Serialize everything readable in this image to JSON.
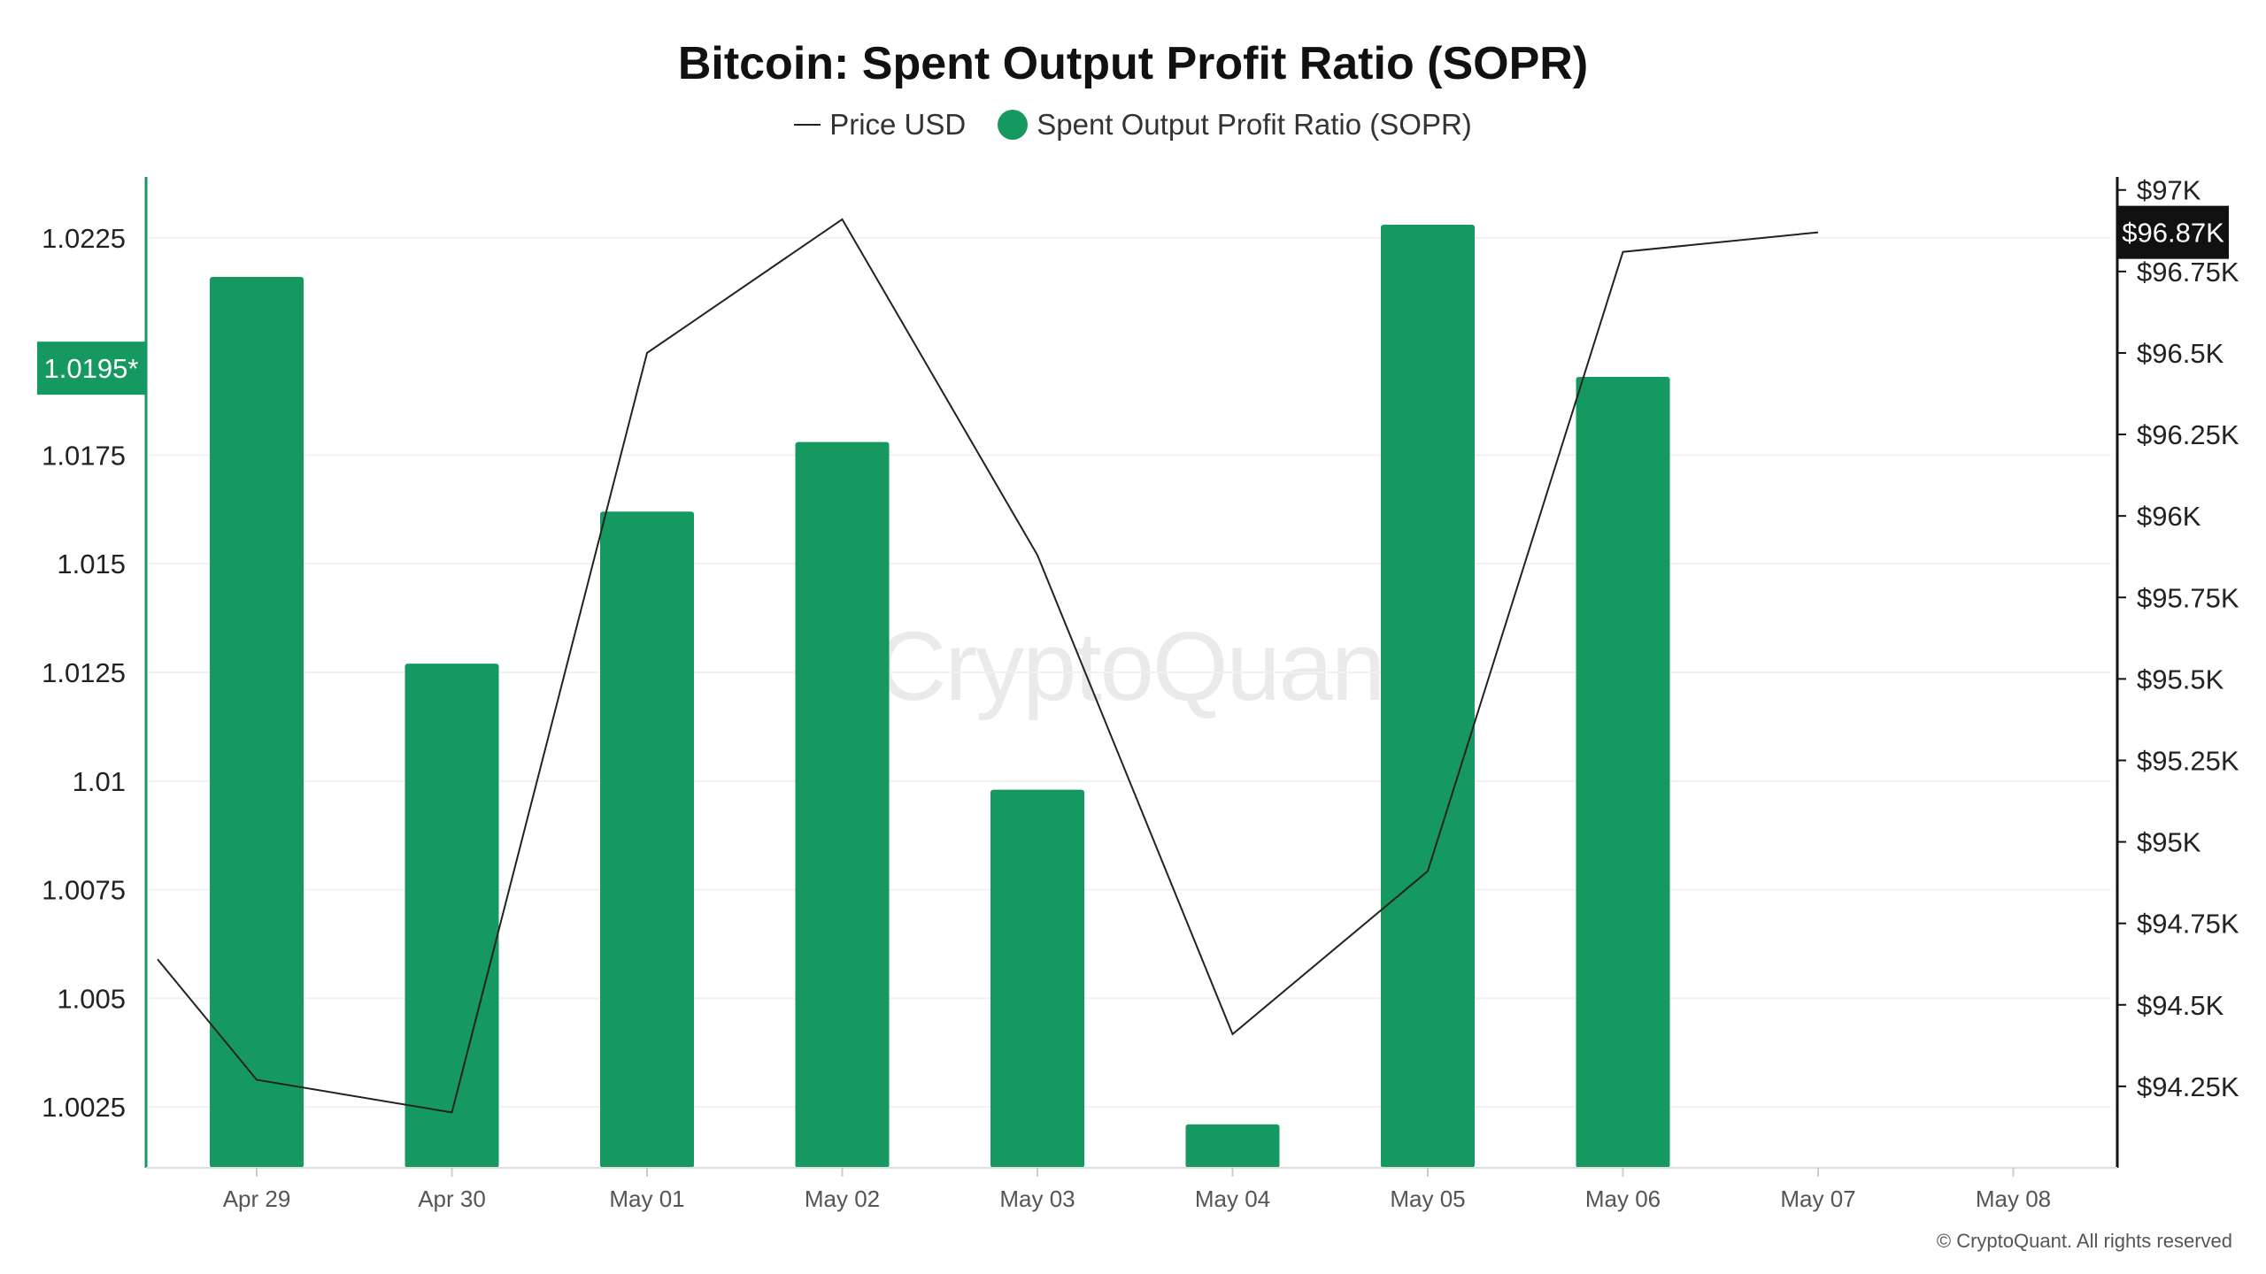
{
  "chart_data": {
    "type": "bar",
    "title": "Bitcoin: Spent Output Profit Ratio (SOPR)",
    "categories": [
      "Apr 29",
      "Apr 30",
      "May 01",
      "May 02",
      "May 03",
      "May 04",
      "May 05",
      "May 06",
      "May 07",
      "May 08"
    ],
    "series": [
      {
        "name": "Spent Output Profit Ratio (SOPR)",
        "type": "bar",
        "axis": "left",
        "color": "#169960",
        "values": [
          1.0216,
          1.0127,
          1.0162,
          1.0178,
          1.0098,
          1.0021,
          1.0228,
          1.0193,
          null,
          null
        ]
      },
      {
        "name": "Price USD",
        "type": "line",
        "axis": "right",
        "color": "#222222",
        "x_offsets": [
          -0.5,
          0,
          1,
          2,
          3,
          4,
          5,
          6,
          7,
          8
        ],
        "values": [
          94.64,
          94.27,
          94.17,
          96.5,
          96.91,
          95.88,
          94.41,
          94.91,
          96.81,
          96.87
        ]
      }
    ],
    "y_left": {
      "ticks": [
        "1.0025",
        "1.005",
        "1.0075",
        "1.01",
        "1.0125",
        "1.015",
        "1.0175",
        "1.0225"
      ],
      "tick_values": [
        1.0025,
        1.005,
        1.0075,
        1.01,
        1.0125,
        1.015,
        1.0175,
        1.0225
      ],
      "ylim": [
        1.0011,
        1.0239
      ]
    },
    "y_right": {
      "ticks": [
        "$94.25K",
        "$94.5K",
        "$94.75K",
        "$95K",
        "$95.25K",
        "$95.5K",
        "$95.75K",
        "$96K",
        "$96.25K",
        "$96.5K",
        "$96.75K",
        "$97K"
      ],
      "tick_values": [
        94.25,
        94.5,
        94.75,
        95,
        95.25,
        95.5,
        95.75,
        96,
        96.25,
        96.5,
        96.75,
        97
      ],
      "ylim": [
        94.0,
        97.04
      ]
    },
    "current_left_label": "1.0195*",
    "current_left_value": 1.0195,
    "current_right_label": "$96.87K",
    "current_right_value": 96.87,
    "grid": true
  },
  "legend": {
    "price_label": "Price USD",
    "sopr_label": "Spent Output Profit Ratio (SOPR)"
  },
  "watermark": "CryptoQuant",
  "copyright": "© CryptoQuant. All rights reserved"
}
